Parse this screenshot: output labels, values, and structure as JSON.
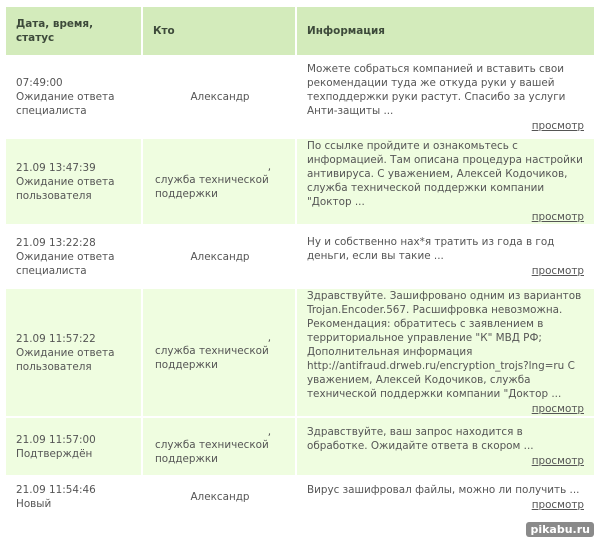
{
  "header": {
    "col_date": "Дата, время, статус",
    "col_who": "Кто",
    "col_info": "Информация"
  },
  "view_label": "просмотр",
  "rows": [
    {
      "datetime": "07:49:00",
      "status": "Ожидание ответа специалиста",
      "who": "Александр",
      "comma": "",
      "info": "Можете собраться компанией и вставить свои рекомендации туда же откуда руки у вашей техподдержки руки растут. Спасибо за услуги Анти-защиты ..."
    },
    {
      "datetime": "21.09 13:47:39",
      "status": "Ожидание ответа пользователя",
      "who": "служба технической поддержки",
      "comma": ",",
      "info": "По ссылке пройдите и ознакомьтесь с информацией. Там описана процедура настройки антивируса. С уважением, Алексей Кодочиков, служба технической поддержки компании \"Доктор ..."
    },
    {
      "datetime": "21.09 13:22:28",
      "status": "Ожидание ответа специалиста",
      "who": "Александр",
      "comma": "",
      "info": "Ну и собственно нах*я тратить из года в год деньги, если вы такие ..."
    },
    {
      "datetime": "21.09 11:57:22",
      "status": "Ожидание ответа пользователя",
      "who": "служба технической поддержки",
      "comma": ",",
      "info": "Здравствуйте. Зашифровано одним из вариантов Trojan.Encoder.567. Расшифровка невозможна. Рекомендация: обратитесь с заявлением в территориальное управление \"К\" МВД РФ; Дополнительная информация http://antifraud.drweb.ru/encryption_trojs?lng=ru С уважением, Алексей Кодочиков, служба технической поддержки компании \"Доктор ..."
    },
    {
      "datetime": "21.09 11:57:00",
      "status": "Подтверждён",
      "who": "служба технической поддержки",
      "comma": ",",
      "info": "Здравствуйте, ваш запрос находится в обработке. Ожидайте ответа в скором ..."
    },
    {
      "datetime": "21.09 11:54:46",
      "status": "Новый",
      "who": "Александр",
      "comma": "",
      "info": "Вирус зашифровал файлы, можно ли получить ..."
    }
  ],
  "watermark": "pikabu.ru",
  "colors": {
    "header_bg": "#d3ebbb",
    "row_green": "#effde0",
    "row_white": "#ffffff"
  }
}
